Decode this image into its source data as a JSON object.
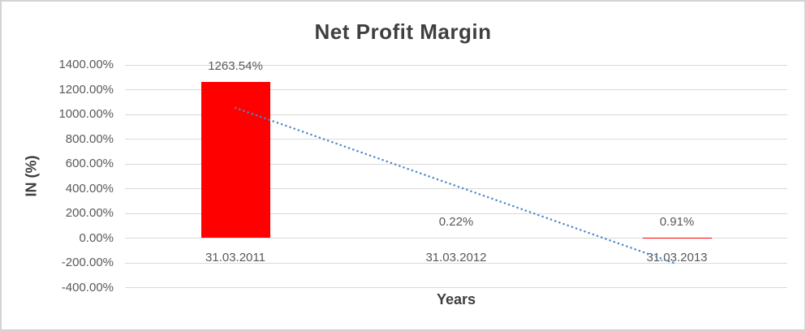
{
  "chart_data": {
    "type": "bar",
    "title": "Net Profit Margin",
    "xlabel": "Years",
    "ylabel": "IN (%)",
    "categories": [
      "31.03.2011",
      "31.03.2012",
      "31.03.2013"
    ],
    "values": [
      1263.54,
      0.22,
      0.91
    ],
    "data_labels": [
      "1263.54%",
      "0.22%",
      "0.91%"
    ],
    "ylim": [
      -400,
      1400
    ],
    "ytick_step": 200,
    "ytick_labels": [
      "1400.00%",
      "1200.00%",
      "1000.00%",
      "800.00%",
      "600.00%",
      "400.00%",
      "200.00%",
      "0.00%",
      "-200.00%",
      "-400.00%"
    ],
    "grid": "horizontal",
    "legend_position": "none",
    "trendline": {
      "type": "linear",
      "style": "dotted",
      "start_value": 1052.9,
      "end_value": -209.7
    },
    "colors": {
      "bar": "#ff0000",
      "grid": "#d9d9d9",
      "trendline": "#4d87c7",
      "tick_text": "#595959",
      "title_text": "#3f3f3f",
      "frame_border": "#d3d3d3"
    }
  }
}
